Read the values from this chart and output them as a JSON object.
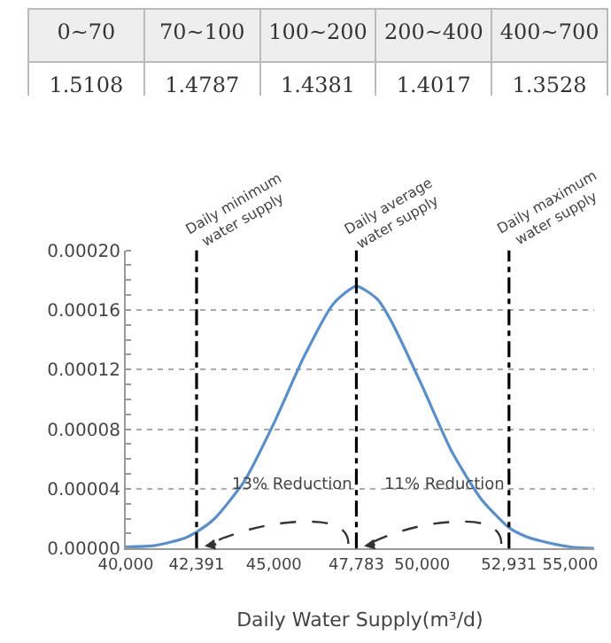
{
  "chart_data": [
    {
      "type": "other",
      "categories": [
        "0~70",
        "70~100",
        "100~200",
        "200~400",
        "400~700"
      ],
      "values": [
        1.5108,
        1.4787,
        1.4381,
        1.4017,
        1.3528
      ],
      "data_labels": true
    },
    {
      "type": "line",
      "xlabel": "Daily Water Supply(m³/d)",
      "x": [
        40000,
        41000,
        42000,
        42391,
        43000,
        44000,
        45000,
        46000,
        47000,
        47783,
        48500,
        49000,
        50000,
        51000,
        52000,
        52931,
        53500,
        54000,
        55000,
        55800
      ],
      "series": [
        {
          "color": "#5b8fc9",
          "values": [
            1e-06,
            2e-06,
            7e-06,
            1.1e-05,
            2e-05,
            4.5e-05,
            8.4e-05,
            0.000128,
            0.000164,
            0.000176,
            0.000167,
            0.000151,
            0.000109,
            6.5e-05,
            3.3e-05,
            1.4e-05,
            8e-06,
            5e-06,
            1e-06,
            0.0
          ]
        }
      ],
      "xlim": [
        40000,
        55800
      ],
      "xticks": [
        {
          "value": 40000,
          "label": "40,000"
        },
        {
          "value": 42391,
          "label": "42,391"
        },
        {
          "value": 45000,
          "label": "45,000"
        },
        {
          "value": 47783,
          "label": "47,783"
        },
        {
          "value": 50000,
          "label": "50,000"
        },
        {
          "value": 52931,
          "label": "52,931"
        },
        {
          "value": 55000,
          "label": "55,000"
        }
      ],
      "ylim": [
        0,
        0.0002
      ],
      "yticks": [
        {
          "value": 0,
          "label": "0.00000"
        },
        {
          "value": 4e-05,
          "label": "0.00004"
        },
        {
          "value": 8e-05,
          "label": "0.00008"
        },
        {
          "value": 0.00012,
          "label": "0.00012"
        },
        {
          "value": 0.00016,
          "label": "0.00016"
        },
        {
          "value": 0.0002,
          "label": "0.00020"
        }
      ],
      "ref_lines": [
        {
          "axis": "x",
          "value": 42391,
          "label": "Daily minimum\nwater supply",
          "color": "#000000",
          "line_style": "dashdot"
        },
        {
          "axis": "x",
          "value": 47783,
          "label": "Daily average\nwater supply",
          "color": "#000000",
          "line_style": "dashdot"
        },
        {
          "axis": "x",
          "value": 52931,
          "label": "Daily maximum\nwater supply",
          "color": "#000000",
          "line_style": "dashdot"
        }
      ],
      "annotations": [
        "13% Reduction",
        "11% Reduction"
      ],
      "grid": "y",
      "marker": "none",
      "line_style": "solid"
    }
  ]
}
